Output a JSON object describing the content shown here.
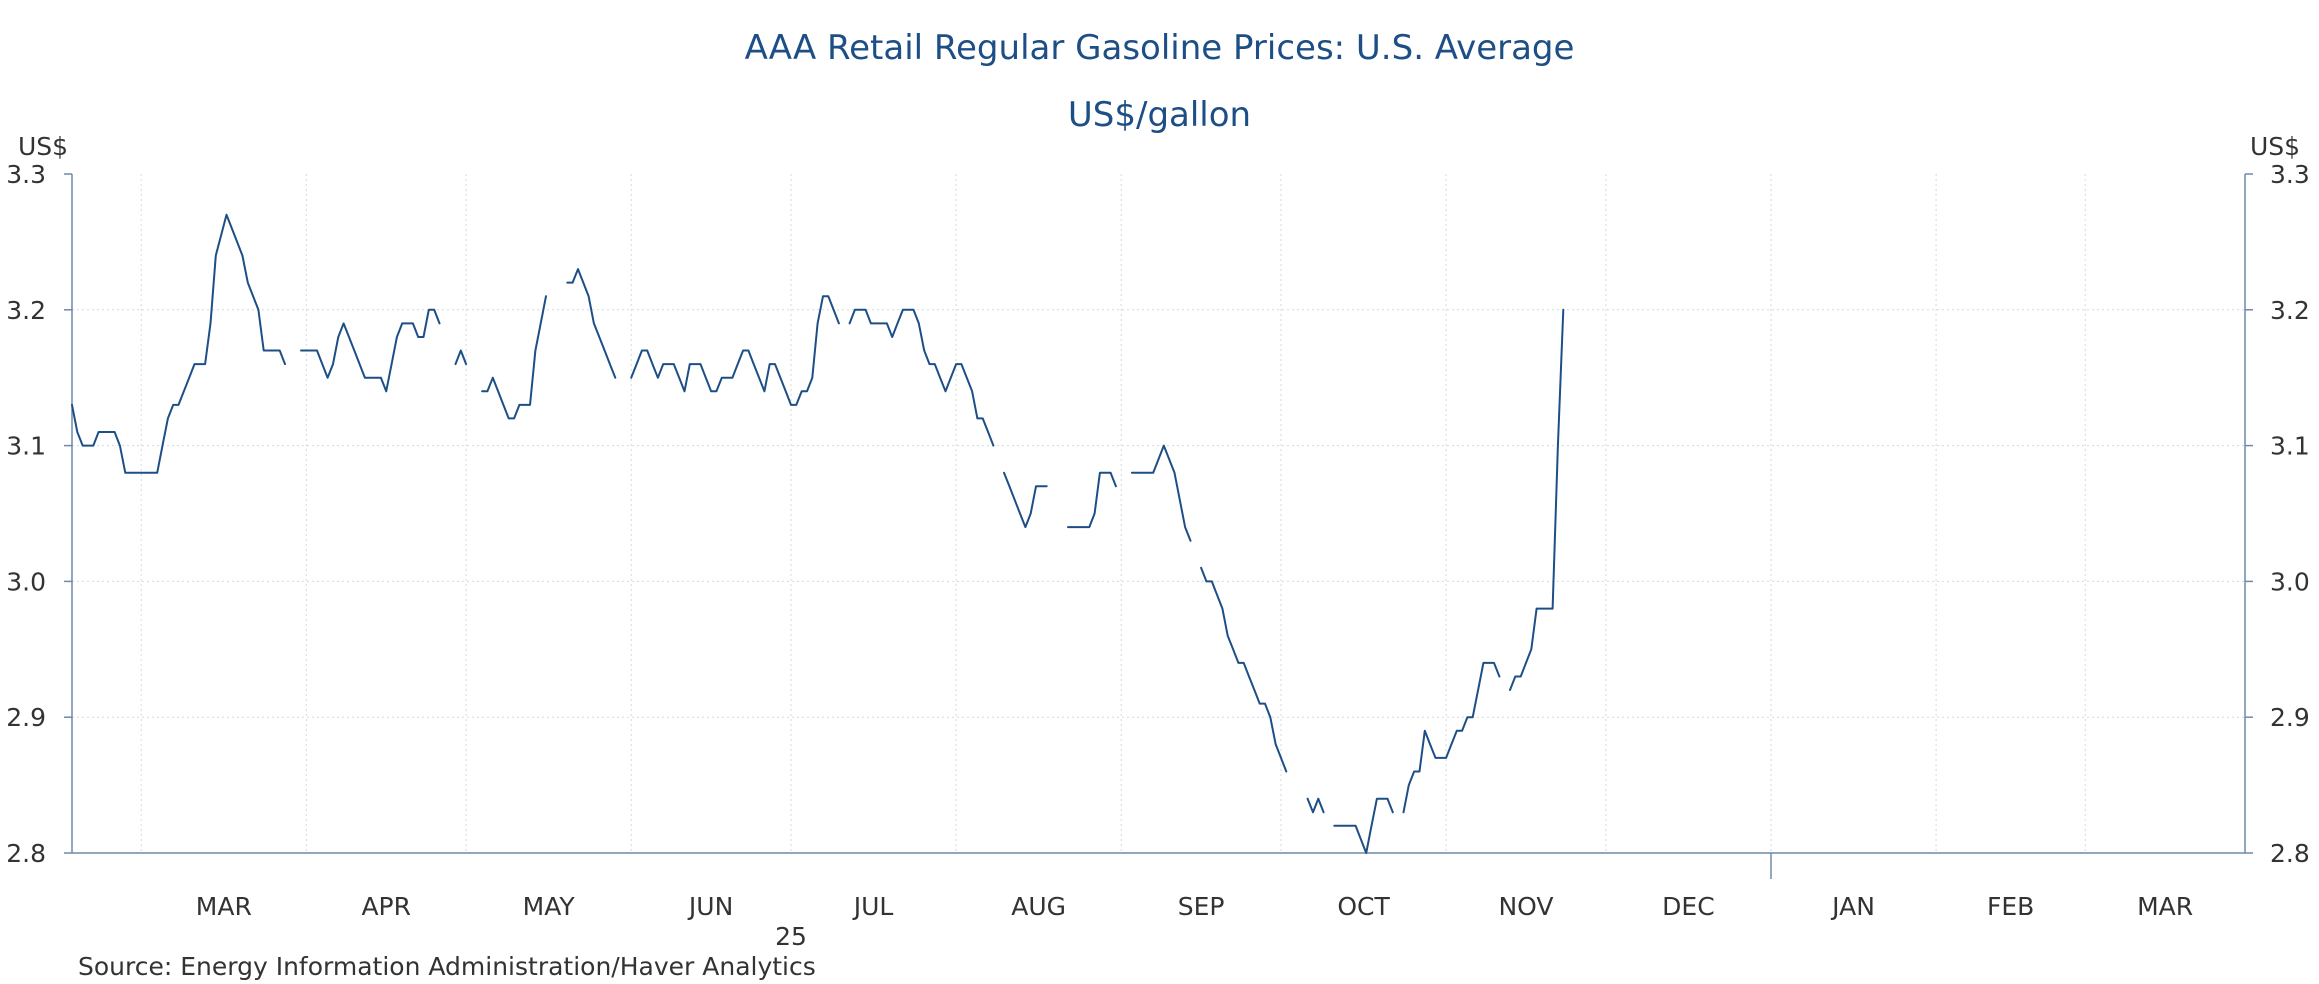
{
  "colors": {
    "line": "#1d4f86",
    "axis": "#6f8aa8",
    "grid": "#d4d9df",
    "text": "#333333",
    "title": "#1d4f86"
  },
  "chart_data": {
    "type": "line",
    "title": "AAA Retail Regular Gasoline Prices: U.S. Average",
    "subtitle": "US$/gallon",
    "ylabel_left": "US$",
    "ylabel_right": "US$",
    "ylim": [
      2.8,
      3.3
    ],
    "yticks": [
      "2.8",
      "2.9",
      "3.0",
      "3.1",
      "3.2",
      "3.3"
    ],
    "xlim": [
      "2025-02-16",
      "2026-03-31"
    ],
    "month_ticks": [
      "MAR",
      "APR",
      "MAY",
      "JUN",
      "JUL",
      "AUG",
      "SEP",
      "OCT",
      "NOV",
      "DEC",
      "JAN",
      "FEB",
      "MAR"
    ],
    "year_label": "25",
    "grid": true,
    "source": "Source:  Energy Information Administration/Haver Analytics",
    "series": [
      {
        "segments": [
          [
            [
              "2025-02-16",
              3.13
            ],
            [
              "2025-02-17",
              3.11
            ],
            [
              "2025-02-18",
              3.1
            ],
            [
              "2025-02-20",
              3.1
            ],
            [
              "2025-02-21",
              3.11
            ],
            [
              "2025-02-24",
              3.11
            ],
            [
              "2025-02-25",
              3.1
            ],
            [
              "2025-02-26",
              3.08
            ],
            [
              "2025-03-04",
              3.08
            ],
            [
              "2025-03-05",
              3.1
            ],
            [
              "2025-03-06",
              3.12
            ],
            [
              "2025-03-07",
              3.13
            ],
            [
              "2025-03-08",
              3.13
            ],
            [
              "2025-03-10",
              3.15
            ],
            [
              "2025-03-11",
              3.16
            ],
            [
              "2025-03-13",
              3.16
            ],
            [
              "2025-03-14",
              3.19
            ],
            [
              "2025-03-15",
              3.24
            ],
            [
              "2025-03-17",
              3.27
            ],
            [
              "2025-03-18",
              3.26
            ],
            [
              "2025-03-19",
              3.25
            ],
            [
              "2025-03-20",
              3.24
            ],
            [
              "2025-03-21",
              3.22
            ],
            [
              "2025-03-22",
              3.21
            ],
            [
              "2025-03-23",
              3.2
            ],
            [
              "2025-03-24",
              3.17
            ],
            [
              "2025-03-27",
              3.17
            ],
            [
              "2025-03-28",
              3.16
            ]
          ],
          [
            [
              "2025-03-31",
              3.17
            ],
            [
              "2025-04-03",
              3.17
            ],
            [
              "2025-04-04",
              3.16
            ],
            [
              "2025-04-05",
              3.15
            ],
            [
              "2025-04-06",
              3.16
            ],
            [
              "2025-04-07",
              3.18
            ],
            [
              "2025-04-08",
              3.19
            ],
            [
              "2025-04-09",
              3.18
            ],
            [
              "2025-04-10",
              3.17
            ],
            [
              "2025-04-11",
              3.16
            ],
            [
              "2025-04-12",
              3.15
            ],
            [
              "2025-04-15",
              3.15
            ],
            [
              "2025-04-16",
              3.14
            ],
            [
              "2025-04-17",
              3.16
            ],
            [
              "2025-04-18",
              3.18
            ],
            [
              "2025-04-19",
              3.19
            ],
            [
              "2025-04-21",
              3.19
            ],
            [
              "2025-04-22",
              3.18
            ],
            [
              "2025-04-23",
              3.18
            ],
            [
              "2025-04-24",
              3.2
            ],
            [
              "2025-04-25",
              3.2
            ],
            [
              "2025-04-26",
              3.19
            ]
          ],
          [
            [
              "2025-04-29",
              3.16
            ],
            [
              "2025-04-30",
              3.17
            ],
            [
              "2025-05-01",
              3.16
            ]
          ],
          [
            [
              "2025-05-04",
              3.14
            ],
            [
              "2025-05-05",
              3.14
            ],
            [
              "2025-05-06",
              3.15
            ],
            [
              "2025-05-07",
              3.14
            ],
            [
              "2025-05-08",
              3.13
            ],
            [
              "2025-05-09",
              3.12
            ],
            [
              "2025-05-10",
              3.12
            ],
            [
              "2025-05-11",
              3.13
            ],
            [
              "2025-05-13",
              3.13
            ],
            [
              "2025-05-14",
              3.17
            ],
            [
              "2025-05-15",
              3.19
            ],
            [
              "2025-05-16",
              3.21
            ]
          ],
          [
            [
              "2025-05-20",
              3.22
            ],
            [
              "2025-05-21",
              3.22
            ],
            [
              "2025-05-22",
              3.23
            ],
            [
              "2025-05-23",
              3.22
            ],
            [
              "2025-05-24",
              3.21
            ],
            [
              "2025-05-25",
              3.19
            ],
            [
              "2025-05-26",
              3.18
            ],
            [
              "2025-05-27",
              3.17
            ],
            [
              "2025-05-28",
              3.16
            ],
            [
              "2025-05-29",
              3.15
            ]
          ],
          [
            [
              "2025-06-01",
              3.15
            ],
            [
              "2025-06-02",
              3.16
            ],
            [
              "2025-06-03",
              3.17
            ],
            [
              "2025-06-04",
              3.17
            ],
            [
              "2025-06-05",
              3.16
            ],
            [
              "2025-06-06",
              3.15
            ],
            [
              "2025-06-07",
              3.16
            ],
            [
              "2025-06-09",
              3.16
            ],
            [
              "2025-06-10",
              3.15
            ],
            [
              "2025-06-11",
              3.14
            ],
            [
              "2025-06-12",
              3.16
            ],
            [
              "2025-06-14",
              3.16
            ],
            [
              "2025-06-15",
              3.15
            ],
            [
              "2025-06-16",
              3.14
            ],
            [
              "2025-06-17",
              3.14
            ],
            [
              "2025-06-18",
              3.15
            ],
            [
              "2025-06-20",
              3.15
            ],
            [
              "2025-06-21",
              3.16
            ],
            [
              "2025-06-22",
              3.17
            ],
            [
              "2025-06-23",
              3.17
            ],
            [
              "2025-06-24",
              3.16
            ],
            [
              "2025-06-25",
              3.15
            ],
            [
              "2025-06-26",
              3.14
            ],
            [
              "2025-06-27",
              3.16
            ],
            [
              "2025-06-28",
              3.16
            ],
            [
              "2025-06-29",
              3.15
            ],
            [
              "2025-06-30",
              3.14
            ],
            [
              "2025-07-01",
              3.13
            ],
            [
              "2025-07-02",
              3.13
            ],
            [
              "2025-07-03",
              3.14
            ],
            [
              "2025-07-04",
              3.14
            ],
            [
              "2025-07-05",
              3.15
            ],
            [
              "2025-07-06",
              3.19
            ],
            [
              "2025-07-07",
              3.21
            ],
            [
              "2025-07-08",
              3.21
            ],
            [
              "2025-07-09",
              3.2
            ],
            [
              "2025-07-10",
              3.19
            ]
          ],
          [
            [
              "2025-07-12",
              3.19
            ],
            [
              "2025-07-13",
              3.2
            ],
            [
              "2025-07-15",
              3.2
            ],
            [
              "2025-07-16",
              3.19
            ],
            [
              "2025-07-19",
              3.19
            ],
            [
              "2025-07-20",
              3.18
            ],
            [
              "2025-07-21",
              3.19
            ],
            [
              "2025-07-22",
              3.2
            ],
            [
              "2025-07-24",
              3.2
            ],
            [
              "2025-07-25",
              3.19
            ],
            [
              "2025-07-26",
              3.17
            ],
            [
              "2025-07-27",
              3.16
            ],
            [
              "2025-07-28",
              3.16
            ],
            [
              "2025-07-29",
              3.15
            ],
            [
              "2025-07-30",
              3.14
            ],
            [
              "2025-07-31",
              3.15
            ],
            [
              "2025-08-01",
              3.16
            ],
            [
              "2025-08-02",
              3.16
            ],
            [
              "2025-08-03",
              3.15
            ],
            [
              "2025-08-04",
              3.14
            ],
            [
              "2025-08-05",
              3.12
            ],
            [
              "2025-08-06",
              3.12
            ],
            [
              "2025-08-07",
              3.11
            ],
            [
              "2025-08-08",
              3.1
            ]
          ],
          [
            [
              "2025-08-10",
              3.08
            ],
            [
              "2025-08-11",
              3.07
            ],
            [
              "2025-08-12",
              3.06
            ],
            [
              "2025-08-13",
              3.05
            ],
            [
              "2025-08-14",
              3.04
            ],
            [
              "2025-08-15",
              3.05
            ],
            [
              "2025-08-16",
              3.07
            ],
            [
              "2025-08-18",
              3.07
            ]
          ],
          [
            [
              "2025-08-22",
              3.04
            ],
            [
              "2025-08-26",
              3.04
            ],
            [
              "2025-08-27",
              3.05
            ],
            [
              "2025-08-28",
              3.08
            ],
            [
              "2025-08-30",
              3.08
            ],
            [
              "2025-08-31",
              3.07
            ]
          ],
          [
            [
              "2025-09-03",
              3.08
            ],
            [
              "2025-09-07",
              3.08
            ],
            [
              "2025-09-08",
              3.09
            ],
            [
              "2025-09-09",
              3.1
            ],
            [
              "2025-09-10",
              3.09
            ],
            [
              "2025-09-11",
              3.08
            ],
            [
              "2025-09-12",
              3.06
            ],
            [
              "2025-09-13",
              3.04
            ],
            [
              "2025-09-14",
              3.03
            ]
          ],
          [
            [
              "2025-09-16",
              3.01
            ],
            [
              "2025-09-17",
              3.0
            ],
            [
              "2025-09-18",
              3.0
            ],
            [
              "2025-09-19",
              2.99
            ],
            [
              "2025-09-20",
              2.98
            ],
            [
              "2025-09-21",
              2.96
            ],
            [
              "2025-09-22",
              2.95
            ],
            [
              "2025-09-23",
              2.94
            ],
            [
              "2025-09-24",
              2.94
            ],
            [
              "2025-09-25",
              2.93
            ],
            [
              "2025-09-26",
              2.92
            ],
            [
              "2025-09-27",
              2.91
            ],
            [
              "2025-09-28",
              2.91
            ],
            [
              "2025-09-29",
              2.9
            ],
            [
              "2025-09-30",
              2.88
            ],
            [
              "2025-10-01",
              2.87
            ],
            [
              "2025-10-02",
              2.86
            ]
          ],
          [
            [
              "2025-10-06",
              2.84
            ],
            [
              "2025-10-07",
              2.83
            ],
            [
              "2025-10-08",
              2.84
            ],
            [
              "2025-10-09",
              2.83
            ]
          ],
          [
            [
              "2025-10-11",
              2.82
            ],
            [
              "2025-10-15",
              2.82
            ],
            [
              "2025-10-16",
              2.81
            ],
            [
              "2025-10-17",
              2.8
            ],
            [
              "2025-10-18",
              2.82
            ],
            [
              "2025-10-19",
              2.84
            ],
            [
              "2025-10-21",
              2.84
            ],
            [
              "2025-10-22",
              2.83
            ]
          ],
          [
            [
              "2025-10-24",
              2.83
            ],
            [
              "2025-10-25",
              2.85
            ],
            [
              "2025-10-26",
              2.86
            ],
            [
              "2025-10-27",
              2.86
            ],
            [
              "2025-10-28",
              2.89
            ],
            [
              "2025-10-29",
              2.88
            ],
            [
              "2025-10-30",
              2.87
            ],
            [
              "2025-11-01",
              2.87
            ],
            [
              "2025-11-02",
              2.88
            ],
            [
              "2025-11-03",
              2.89
            ],
            [
              "2025-11-04",
              2.89
            ],
            [
              "2025-11-05",
              2.9
            ],
            [
              "2025-11-06",
              2.9
            ],
            [
              "2025-11-07",
              2.92
            ],
            [
              "2025-11-08",
              2.94
            ],
            [
              "2025-11-10",
              2.94
            ],
            [
              "2025-11-11",
              2.93
            ]
          ],
          [
            [
              "2025-11-13",
              2.92
            ],
            [
              "2025-11-14",
              2.93
            ],
            [
              "2025-11-15",
              2.93
            ],
            [
              "2025-11-16",
              2.94
            ],
            [
              "2025-11-17",
              2.95
            ],
            [
              "2025-11-18",
              2.98
            ],
            [
              "2025-11-21",
              2.98
            ],
            [
              "2025-11-22",
              3.1
            ],
            [
              "2025-11-23",
              3.2
            ]
          ]
        ]
      }
    ]
  }
}
